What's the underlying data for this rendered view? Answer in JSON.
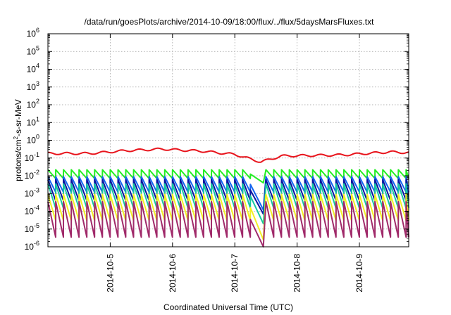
{
  "chart_data": {
    "type": "line",
    "title": "/data/run/goesPlots/archive/2014-10-09/18:00/flux/../flux/5daysMarsFluxes.txt",
    "xlabel": "Coordinated Universal Time (UTC)",
    "ylabel": "protons/cm²-s-sr-MeV",
    "ylabel_parts": {
      "base": "protons/cm",
      "sup": "2",
      "rest": "-s-sr-MeV"
    },
    "yscale": "log",
    "ylim": [
      1e-06,
      1000000.0
    ],
    "yticks": [
      {
        "exp": "-6"
      },
      {
        "exp": "-5"
      },
      {
        "exp": "-4"
      },
      {
        "exp": "-3"
      },
      {
        "exp": "-2"
      },
      {
        "exp": "-1"
      },
      {
        "exp": "0"
      },
      {
        "exp": "1"
      },
      {
        "exp": "2"
      },
      {
        "exp": "3"
      },
      {
        "exp": "4"
      },
      {
        "exp": "5"
      },
      {
        "exp": "6"
      }
    ],
    "ytick_base": "10",
    "xlim": [
      "2014-10-04T00:00",
      "2014-10-09T19:00"
    ],
    "xticks": [
      "2014-10-5",
      "2014-10-6",
      "2014-10-7",
      "2014-10-8",
      "2014-10-9"
    ],
    "grid": true,
    "cycle_hours": 3,
    "dip": {
      "start": "2014-10-07T06:00",
      "end": "2014-10-07T11:00",
      "recover": "2014-10-07T12:00"
    },
    "series": [
      {
        "color": "#e8141c",
        "sawtooth": false,
        "min": 0.13,
        "max": 0.32,
        "anchors": [
          [
            "2014-10-04T00:00",
            0.18
          ],
          [
            "2014-10-04T16:00",
            0.18
          ],
          [
            "2014-10-05T06:00",
            0.26
          ],
          [
            "2014-10-05T20:00",
            0.32
          ],
          [
            "2014-10-06T12:00",
            0.24
          ],
          [
            "2014-10-07T00:00",
            0.16
          ],
          [
            "2014-10-07T10:00",
            0.06
          ],
          [
            "2014-10-07T18:00",
            0.13
          ],
          [
            "2014-10-08T18:00",
            0.15
          ],
          [
            "2014-10-09T12:00",
            0.22
          ],
          [
            "2014-10-09T19:00",
            0.2
          ]
        ]
      },
      {
        "color": "#22ee22",
        "sawtooth": true,
        "min": 0.007,
        "max": 0.022,
        "dip_to": 0.004
      },
      {
        "color": "#1464f0",
        "sawtooth": true,
        "min": 0.0012,
        "max": 0.009,
        "dip_to": 0.00012
      },
      {
        "color": "#0a14a0",
        "sawtooth": true,
        "min": 0.0004,
        "max": 0.006,
        "dip_to": 7e-05
      },
      {
        "color": "#16c8a0",
        "sawtooth": true,
        "min": 0.00015,
        "max": 0.0035,
        "dip_to": 2e-05
      },
      {
        "color": "#f2f024",
        "sawtooth": true,
        "min": 3e-05,
        "max": 0.0009,
        "dip_to": 2.5e-06
      },
      {
        "color": "#a02a6a",
        "sawtooth": true,
        "min": 3.5e-06,
        "max": 0.00035,
        "dip_to": 6e-07
      }
    ]
  }
}
